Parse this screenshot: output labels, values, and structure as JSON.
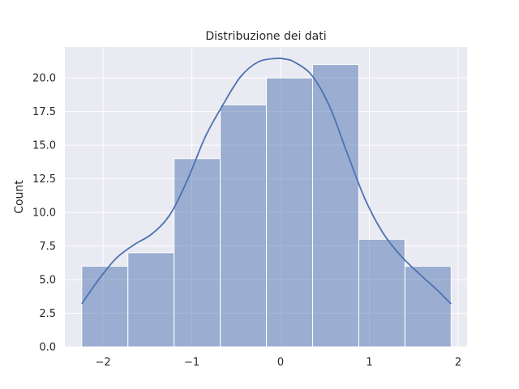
{
  "chart_data": {
    "type": "bar",
    "title": "Distribuzione dei dati",
    "xlabel": "",
    "ylabel": "Count",
    "xlim": [
      -2.43,
      2.1
    ],
    "ylim": [
      0,
      22.3
    ],
    "grid": true,
    "colors": {
      "background": "#EAEAF2",
      "grid": "#FFFFFF",
      "bar_fill": "#4C72B0",
      "bar_opacity": 0.5,
      "bar_edge": "#FFFFFF",
      "kde_line": "#4C72B0"
    },
    "bins": [
      {
        "start": -2.24,
        "end": -1.72,
        "count": 6
      },
      {
        "start": -1.72,
        "end": -1.2,
        "count": 7
      },
      {
        "start": -1.2,
        "end": -0.68,
        "count": 14
      },
      {
        "start": -0.68,
        "end": -0.16,
        "count": 18
      },
      {
        "start": -0.16,
        "end": 0.36,
        "count": 20
      },
      {
        "start": 0.36,
        "end": 0.88,
        "count": 21
      },
      {
        "start": 0.88,
        "end": 1.4,
        "count": 8
      },
      {
        "start": 1.4,
        "end": 1.92,
        "count": 6
      }
    ],
    "kde": {
      "x": [
        -2.24,
        -2.05,
        -1.85,
        -1.65,
        -1.45,
        -1.25,
        -1.05,
        -0.85,
        -0.65,
        -0.45,
        -0.25,
        -0.05,
        0.05,
        0.15,
        0.35,
        0.55,
        0.75,
        0.95,
        1.15,
        1.35,
        1.55,
        1.75,
        1.92
      ],
      "y": [
        3.2,
        5.0,
        6.6,
        7.6,
        8.4,
        9.8,
        12.4,
        15.6,
        18.0,
        20.1,
        21.2,
        21.45,
        21.4,
        21.2,
        20.2,
        17.9,
        14.4,
        11.0,
        8.5,
        6.8,
        5.5,
        4.3,
        3.2
      ]
    },
    "xticks": [
      {
        "value": -2,
        "label": "−2"
      },
      {
        "value": -1,
        "label": "−1"
      },
      {
        "value": 0,
        "label": "0"
      },
      {
        "value": 1,
        "label": "1"
      },
      {
        "value": 2,
        "label": "2"
      }
    ],
    "yticks": [
      {
        "value": 0,
        "label": "0.0"
      },
      {
        "value": 2.5,
        "label": "2.5"
      },
      {
        "value": 5,
        "label": "5.0"
      },
      {
        "value": 7.5,
        "label": "7.5"
      },
      {
        "value": 10,
        "label": "10.0"
      },
      {
        "value": 12.5,
        "label": "12.5"
      },
      {
        "value": 15,
        "label": "15.0"
      },
      {
        "value": 17.5,
        "label": "17.5"
      },
      {
        "value": 20,
        "label": "20.0"
      }
    ]
  }
}
